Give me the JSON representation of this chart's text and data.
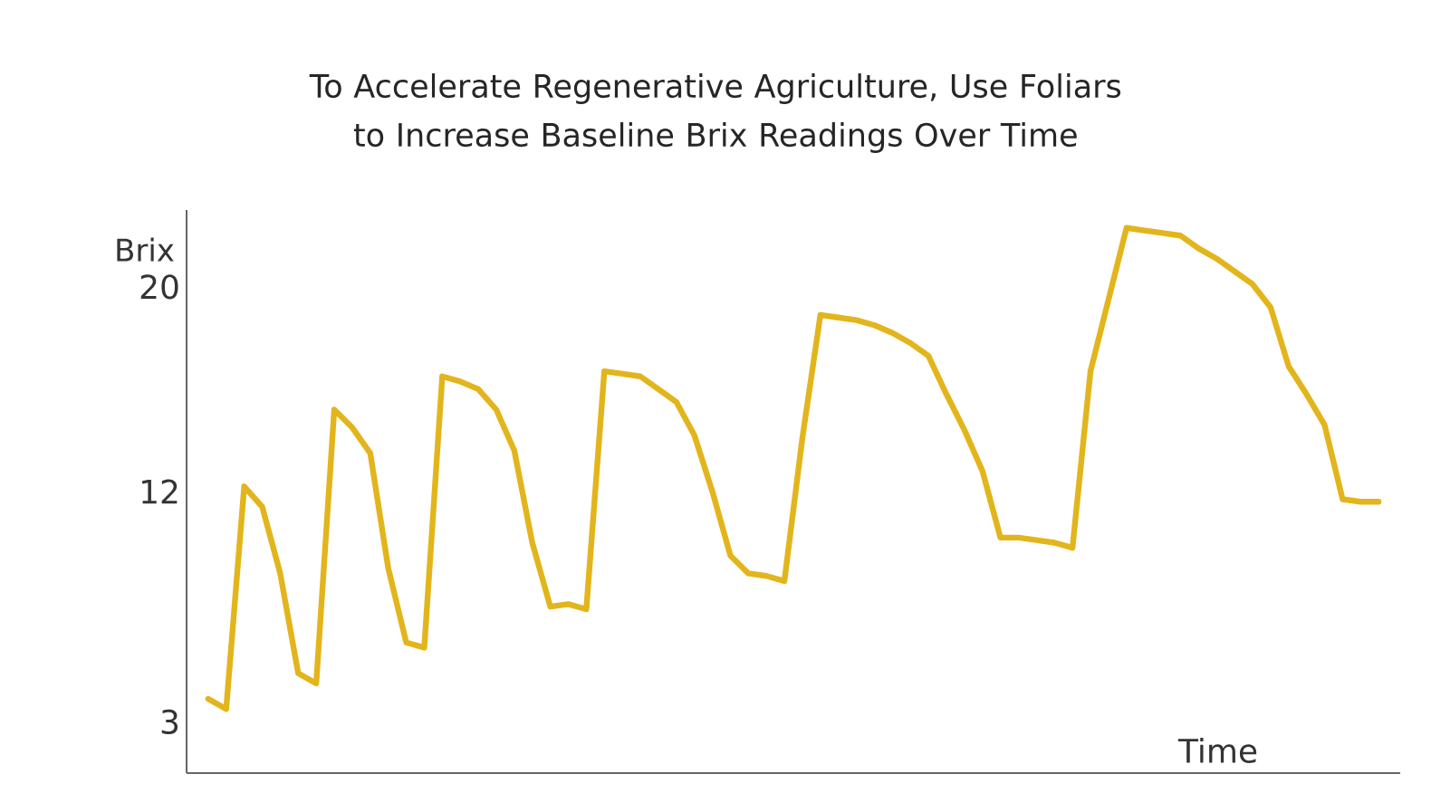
{
  "chart_data": {
    "type": "line",
    "title": "To Accelerate Regenerative Agriculture, Use Foliars to Increase Baseline Brix Readings Over Time",
    "xlabel": "Time",
    "ylabel": "Brix",
    "categories": [
      null,
      null,
      null,
      null,
      null,
      null,
      null,
      null,
      null,
      null,
      null,
      null,
      null,
      null,
      null,
      null,
      null,
      null,
      null,
      null,
      null,
      null,
      null,
      null,
      null,
      null,
      null,
      null,
      null,
      null,
      null,
      null,
      null,
      null,
      null,
      null,
      null,
      null,
      null,
      null,
      null,
      null,
      null,
      null,
      null,
      null,
      null,
      null,
      null,
      null,
      null,
      null,
      null,
      null,
      null,
      null,
      null,
      null,
      null,
      null,
      null,
      null,
      null,
      null,
      null,
      null
    ],
    "ylim": [
      1,
      23
    ],
    "yticks": [
      3,
      12,
      20
    ],
    "tick_labels": "y",
    "marker": "none",
    "line_style": "solid",
    "series": [
      {
        "color": "#e3b51c",
        "values": [
          3.9,
          3.5,
          12.2,
          11.4,
          8.8,
          4.9,
          4.5,
          15.2,
          14.5,
          13.5,
          9.0,
          6.1,
          5.9,
          16.5,
          16.3,
          16.0,
          15.2,
          13.6,
          10.0,
          7.5,
          7.6,
          7.4,
          16.7,
          16.6,
          16.5,
          16.0,
          15.5,
          14.2,
          12.0,
          9.5,
          8.8,
          8.7,
          8.5,
          14.1,
          18.9,
          18.8,
          18.7,
          18.5,
          18.2,
          17.8,
          17.3,
          15.8,
          14.4,
          12.8,
          10.2,
          10.2,
          10.1,
          10.0,
          9.8,
          16.7,
          19.5,
          22.3,
          22.2,
          22.1,
          22.0,
          21.5,
          21.1,
          20.6,
          20.1,
          19.2,
          16.9,
          15.8,
          14.6,
          11.7,
          11.6,
          11.6
        ]
      }
    ]
  }
}
